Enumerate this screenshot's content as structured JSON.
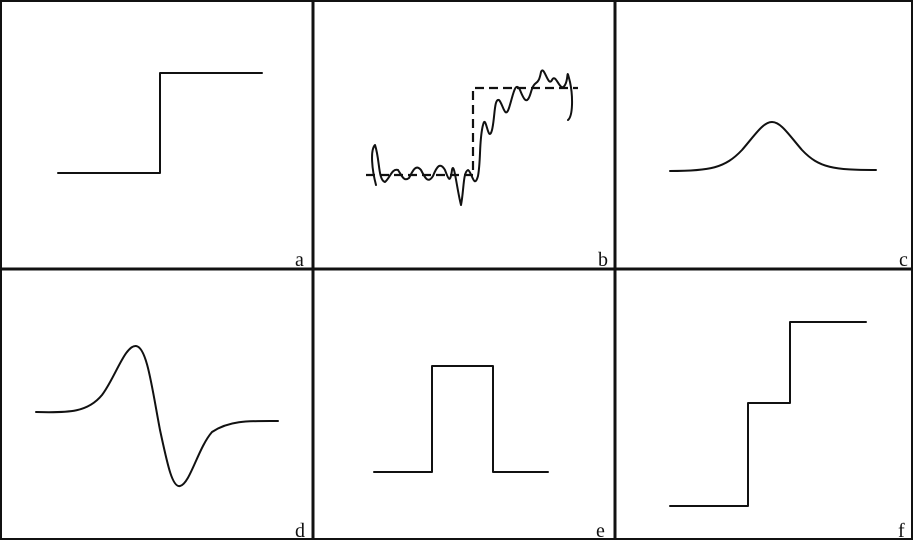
{
  "panels": [
    {
      "id": "a",
      "label": "a",
      "signal": "step"
    },
    {
      "id": "b",
      "label": "b",
      "signal": "noisy-step"
    },
    {
      "id": "c",
      "label": "c",
      "signal": "gaussian-bump"
    },
    {
      "id": "d",
      "label": "d",
      "signal": "gaussian-derivative"
    },
    {
      "id": "e",
      "label": "e",
      "signal": "rectangular-pulse"
    },
    {
      "id": "f",
      "label": "f",
      "signal": "double-step"
    }
  ],
  "colors": {
    "ink": "#111111",
    "background": "#ffffff"
  }
}
